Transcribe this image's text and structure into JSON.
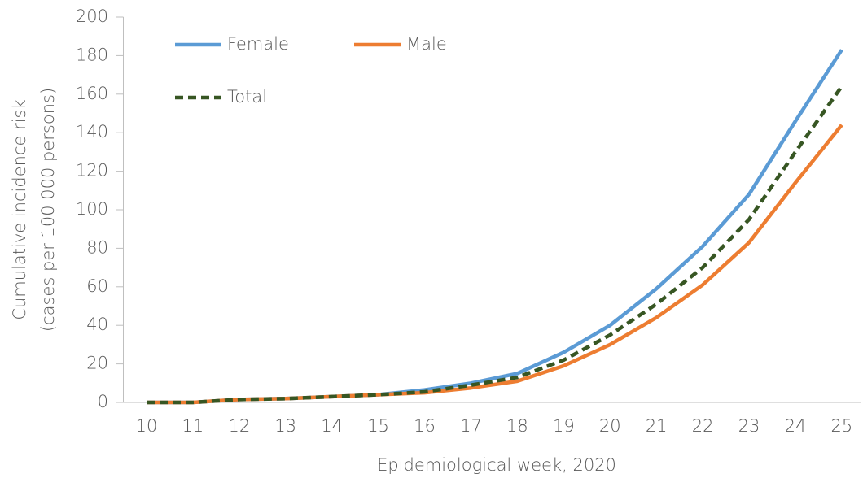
{
  "chart_data": {
    "type": "line",
    "xlabel": "Epidemiological week, 2020",
    "ylabel": [
      "Cumulative incidence risk",
      "(cases per 100 000 persons)"
    ],
    "categories": [
      "10",
      "11",
      "12",
      "13",
      "14",
      "15",
      "16",
      "17",
      "18",
      "19",
      "20",
      "21",
      "22",
      "23",
      "24",
      "25"
    ],
    "series": [
      {
        "name": "Female",
        "color": "#5b9bd5",
        "dashed": false,
        "values": [
          0,
          0,
          1.5,
          2,
          3,
          4,
          6.5,
          10,
          15,
          26,
          40,
          59,
          81,
          108,
          146,
          183
        ]
      },
      {
        "name": "Male",
        "color": "#ed7d31",
        "dashed": false,
        "values": [
          0,
          0,
          1.5,
          2,
          3,
          4,
          5,
          7.5,
          11,
          19,
          30,
          44,
          61,
          83,
          114,
          144
        ]
      },
      {
        "name": "Total",
        "color": "#375623",
        "dashed": true,
        "values": [
          0,
          0,
          1.5,
          2,
          3,
          4,
          5.5,
          9,
          13,
          22,
          35,
          51,
          70,
          95,
          130,
          164
        ]
      }
    ],
    "ylim": [
      0,
      200
    ],
    "yticks": [
      0,
      20,
      40,
      60,
      80,
      100,
      120,
      140,
      160,
      180,
      200
    ],
    "grid": false
  }
}
